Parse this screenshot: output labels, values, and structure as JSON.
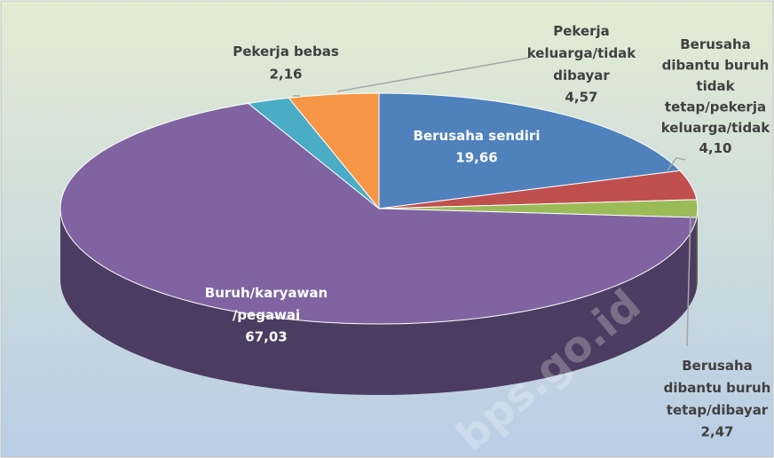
{
  "chart_data": {
    "type": "pie3d",
    "categories": [
      "Berusaha sendiri",
      "Berusaha\ndibantu buruh\ntidak\ntetap/pekerja\nkeluarga/tidak",
      "Berusaha\ndibantu buruh\ntetap/dibayar",
      "Buruh/karyawan\n/pegawai",
      "Pekerja bebas",
      "Pekerja\nkeluarga/tidak\ndibayar"
    ],
    "values": [
      19.66,
      4.1,
      2.47,
      67.03,
      2.16,
      4.57
    ],
    "value_labels": [
      "19,66",
      "4,10",
      "2,47",
      "67,03",
      "2,16",
      "4,57"
    ],
    "colors": [
      "#4f81bd",
      "#c0504d",
      "#9bbb59",
      "#8064a2",
      "#4bacc6",
      "#f79646"
    ],
    "watermark": "bps.go.id"
  }
}
